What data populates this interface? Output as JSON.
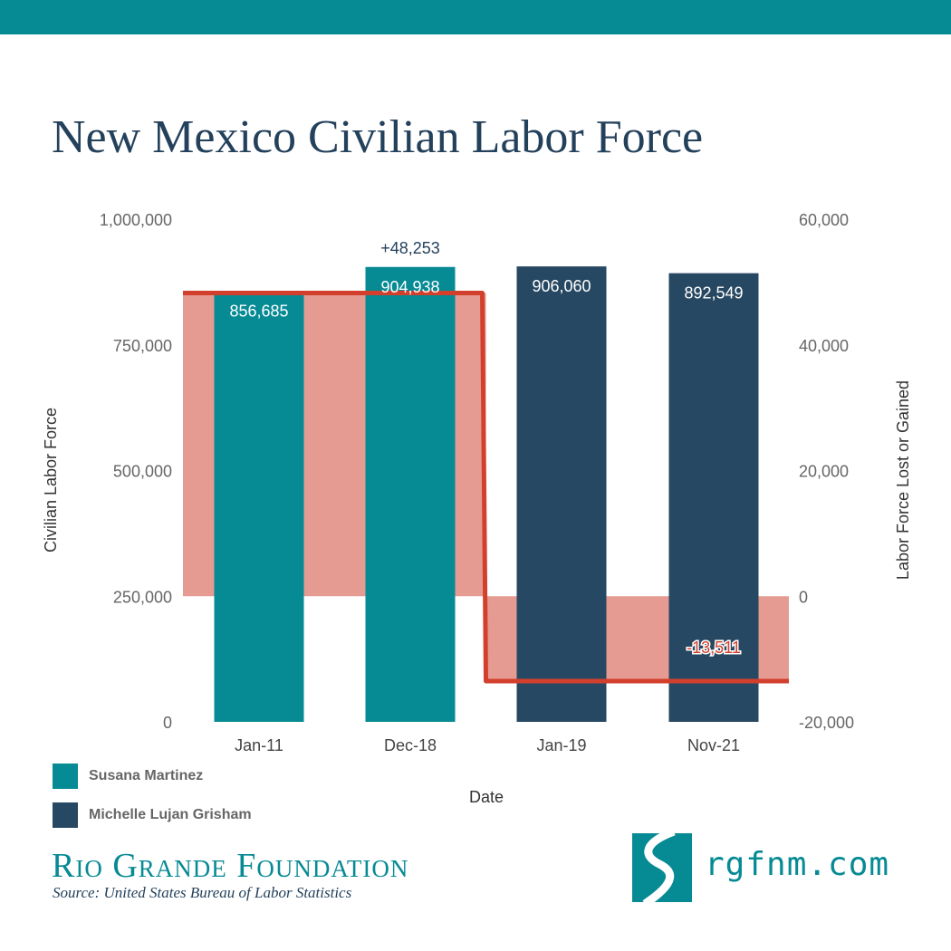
{
  "title": "New Mexico Civilian Labor Force",
  "colors": {
    "teal": "#068a94",
    "navy": "#274862",
    "area": "#e59b91",
    "line": "#d33f2d",
    "axis_text": "#666666",
    "title": "#24415c"
  },
  "chart_data": {
    "type": "bar",
    "title": "New Mexico Civilian Labor Force",
    "xlabel": "Date",
    "ylabel": "Civilian Labor Force",
    "y2label": "Labor Force Lost or Gained",
    "categories": [
      "Jan-11",
      "Dec-18",
      "Jan-19",
      "Nov-21"
    ],
    "ylim": [
      0,
      1000000
    ],
    "y_ticks": [
      "0",
      "250,000",
      "500,000",
      "750,000",
      "1,000,000"
    ],
    "y_tick_values": [
      0,
      250000,
      500000,
      750000,
      1000000
    ],
    "y2lim": [
      -20000,
      60000
    ],
    "y2_ticks": [
      "-20,000",
      "0",
      "20,000",
      "40,000",
      "60,000"
    ],
    "y2_tick_values": [
      -20000,
      0,
      20000,
      40000,
      60000
    ],
    "series": [
      {
        "name": "Susana Martinez",
        "values": [
          856685,
          904938,
          null,
          null
        ],
        "labels": [
          "856,685",
          "904,938",
          "",
          ""
        ],
        "color": "#068a94"
      },
      {
        "name": "Michelle Lujan Grisham",
        "values": [
          null,
          null,
          906060,
          892549
        ],
        "labels": [
          "",
          "",
          "906,060",
          "892,549"
        ],
        "color": "#274862"
      }
    ],
    "change": {
      "type": "step-area",
      "axis": "secondary",
      "values": [
        48253,
        -13511
      ],
      "labels": [
        "+48,253",
        "-13,511"
      ],
      "span_categories": [
        [
          "Jan-11",
          "Dec-18"
        ],
        [
          "Jan-19",
          "Nov-21"
        ]
      ]
    },
    "legend": "bottom-left",
    "grid": false
  },
  "legend": [
    {
      "label": "Susana Martinez",
      "color": "#068a94"
    },
    {
      "label": "Michelle Lujan Grisham",
      "color": "#274862"
    }
  ],
  "footer": {
    "org": "Rio Grande Foundation",
    "source": "Source: United States Bureau of Labor Statistics",
    "site": "rgfnm.com"
  },
  "icons": {
    "logo": "river-state-logo-icon"
  }
}
